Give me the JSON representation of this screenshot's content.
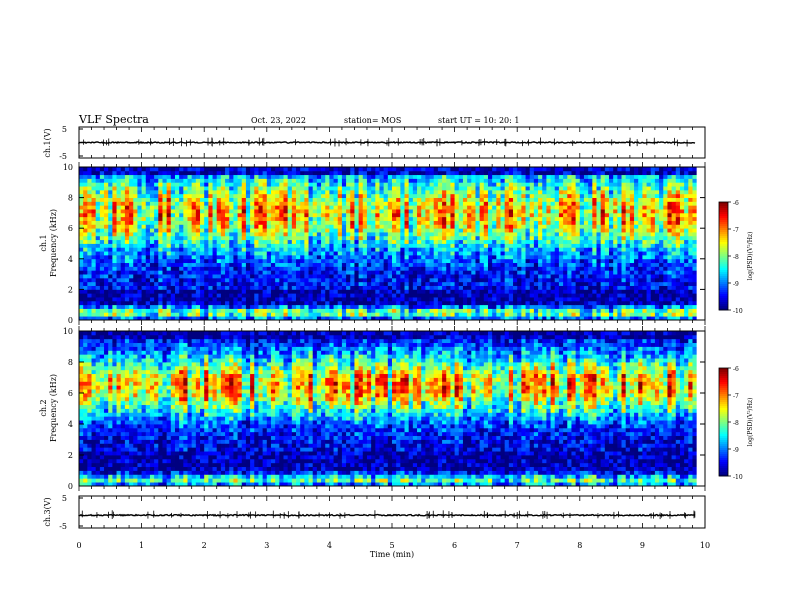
{
  "header": {
    "title": "VLF Spectra",
    "date": "Oct. 23, 2022",
    "station": "station= MOS",
    "start": "start  UT =   10: 20: 1"
  },
  "chart_data": [
    {
      "type": "line",
      "ylabel": "ch.1(V)",
      "ylim": [
        -5,
        5
      ],
      "y_ticks": [
        "5",
        "-5"
      ],
      "level": 0,
      "xlim": [
        0,
        10
      ]
    },
    {
      "type": "heatmap",
      "ylabel": "ch.1\nFrequency (kHz)",
      "ylim": [
        0,
        10
      ],
      "y_ticks": [
        "0",
        "2",
        "4",
        "6",
        "8",
        "10"
      ],
      "xlim": [
        0,
        10
      ],
      "colorbar": {
        "label": "log(PSD)(V²/Hz)",
        "range": [
          -10,
          -6
        ],
        "ticks": [
          "-6",
          "-7",
          "-8",
          "-9",
          "-10"
        ]
      }
    },
    {
      "type": "heatmap",
      "ylabel": "ch.2\nFrequency (kHz)",
      "ylim": [
        0,
        10
      ],
      "y_ticks": [
        "0",
        "2",
        "4",
        "6",
        "8",
        "10"
      ],
      "xlim": [
        0,
        10
      ],
      "colorbar": {
        "label": "log(PSD)(V²/Hz)",
        "range": [
          -10,
          -6
        ],
        "ticks": [
          "-6",
          "-7",
          "-8",
          "-9",
          "-10"
        ]
      }
    },
    {
      "type": "line",
      "ylabel": "ch.3(V)",
      "ylim": [
        -5,
        5
      ],
      "y_ticks": [
        "5",
        "-5"
      ],
      "level": -1,
      "xlim": [
        0,
        10
      ]
    }
  ],
  "xaxis": {
    "label": "Time (min)",
    "ticks": [
      "0",
      "1",
      "2",
      "3",
      "4",
      "5",
      "6",
      "7",
      "8",
      "9",
      "10"
    ]
  }
}
